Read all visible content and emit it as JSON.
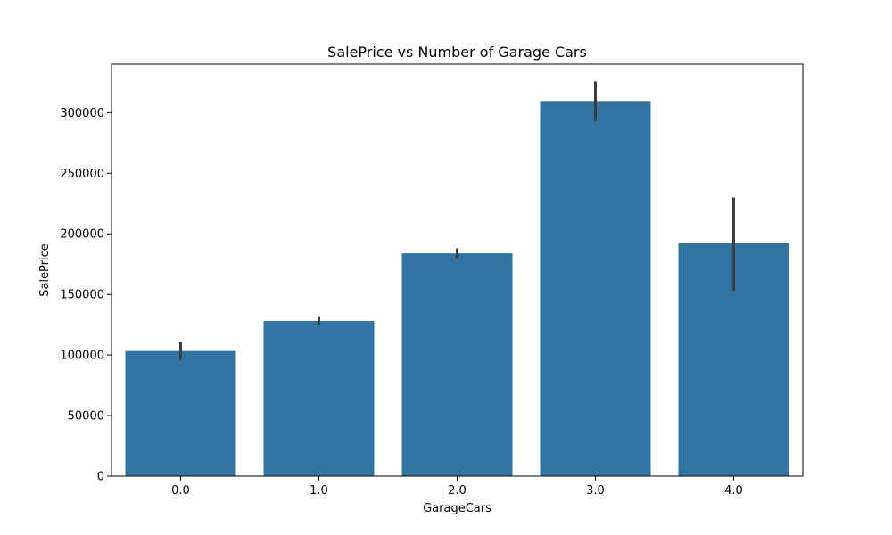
{
  "chart_data": {
    "type": "bar",
    "title": "SalePrice vs Number of Garage Cars",
    "xlabel": "GarageCars",
    "ylabel": "SalePrice",
    "categories": [
      "0.0",
      "1.0",
      "2.0",
      "3.0",
      "4.0"
    ],
    "values": [
      103300,
      128100,
      183900,
      309600,
      192700
    ],
    "error_low": [
      95800,
      124500,
      179200,
      293200,
      153000
    ],
    "error_high": [
      110600,
      132000,
      188000,
      325700,
      230000
    ],
    "ylim": [
      0,
      340000
    ],
    "yticks": [
      0,
      50000,
      100000,
      150000,
      200000,
      250000,
      300000
    ],
    "ytick_labels": [
      "0",
      "50000",
      "100000",
      "150000",
      "200000",
      "250000",
      "300000"
    ],
    "grid": false,
    "colors": {
      "bar": "#3274a1",
      "error_bar": "#3d3d3d",
      "axis": "#000000"
    }
  }
}
